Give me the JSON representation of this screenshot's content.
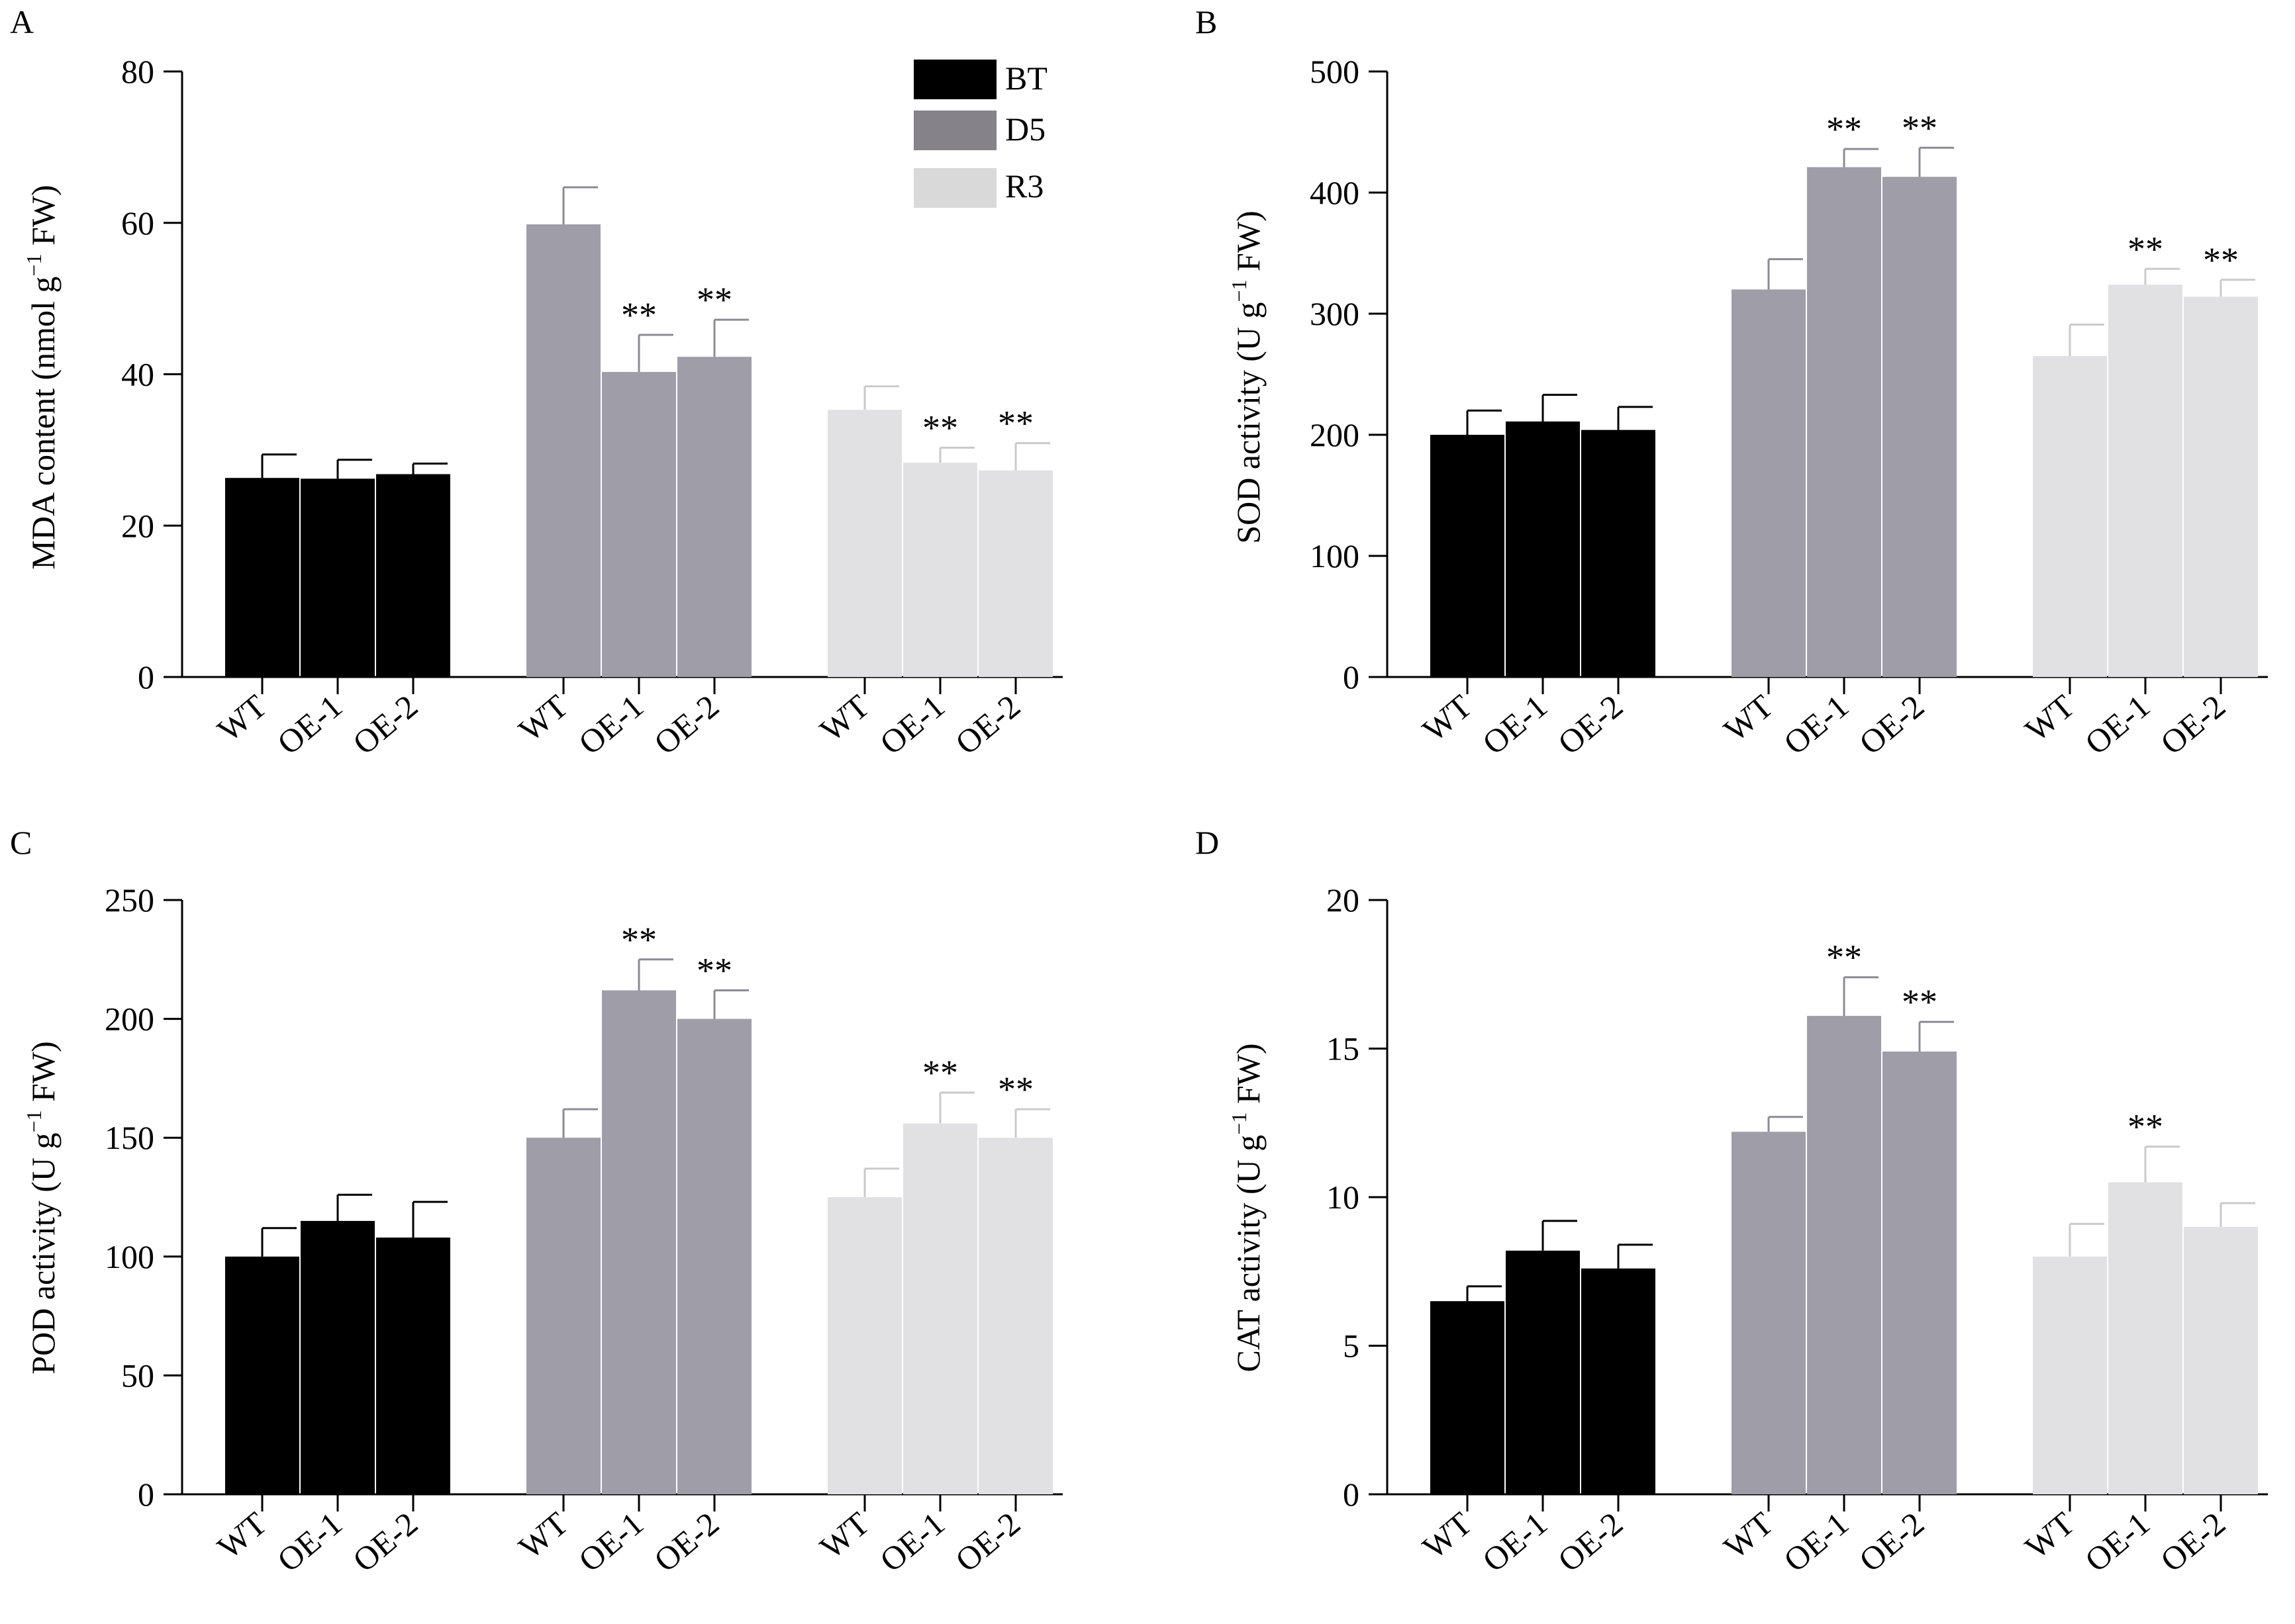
{
  "colors": {
    "BT": "#000000",
    "D5": "#9e9da8",
    "R3": "#e1e1e3",
    "legend_D5": "#858389",
    "legend_R3": "#d9d9d9",
    "error_BT": "#000000",
    "error_D5": "#8c8b94",
    "error_R3": "#cacacd",
    "asterisk_R3": "#3b3b3b"
  },
  "legend": {
    "entries": [
      "BT",
      "D5",
      "R3"
    ],
    "placement": "top-right of panel A"
  },
  "chart_data": [
    {
      "panel": "A",
      "type": "bar",
      "ylabel": "MDA content (nmol g⁻¹ FW)",
      "ylim": [
        0,
        80
      ],
      "yticks": [
        "0",
        "20",
        "40",
        "60",
        "80"
      ],
      "categories": [
        "WT",
        "OE-1",
        "OE-2"
      ],
      "series": [
        {
          "name": "BT",
          "values": [
            26.3,
            26.2,
            26.8
          ],
          "errors": [
            3.1,
            2.5,
            1.4
          ],
          "marks": [
            "",
            "",
            ""
          ]
        },
        {
          "name": "D5",
          "values": [
            59.8,
            40.3,
            42.3
          ],
          "errors": [
            4.9,
            4.9,
            4.9
          ],
          "marks": [
            "",
            "**",
            "**"
          ]
        },
        {
          "name": "R3",
          "values": [
            35.3,
            28.3,
            27.3
          ],
          "errors": [
            3.1,
            2.0,
            3.6
          ],
          "marks": [
            "",
            "**",
            "**"
          ]
        }
      ]
    },
    {
      "panel": "B",
      "type": "bar",
      "ylabel": "SOD activity (U g⁻¹ FW)",
      "ylim": [
        0,
        500
      ],
      "yticks": [
        "0",
        "100",
        "200",
        "300",
        "400",
        "500"
      ],
      "categories": [
        "WT",
        "OE-1",
        "OE-2"
      ],
      "series": [
        {
          "name": "BT",
          "values": [
            200,
            211,
            204
          ],
          "errors": [
            20,
            22,
            19
          ],
          "marks": [
            "",
            "",
            ""
          ]
        },
        {
          "name": "D5",
          "values": [
            320,
            421,
            413
          ],
          "errors": [
            25,
            15,
            24
          ],
          "marks": [
            "",
            "**",
            "**"
          ]
        },
        {
          "name": "R3",
          "values": [
            265,
            324,
            314
          ],
          "errors": [
            26,
            13,
            14
          ],
          "marks": [
            "",
            "**",
            "**"
          ]
        }
      ]
    },
    {
      "panel": "C",
      "type": "bar",
      "ylabel": "POD activity (U g⁻¹ FW)",
      "ylim": [
        0,
        250
      ],
      "yticks": [
        "0",
        "50",
        "100",
        "150",
        "200",
        "250"
      ],
      "categories": [
        "WT",
        "OE-1",
        "OE-2"
      ],
      "series": [
        {
          "name": "BT",
          "values": [
            100,
            115,
            108
          ],
          "errors": [
            12,
            11,
            15
          ],
          "marks": [
            "",
            "",
            ""
          ]
        },
        {
          "name": "D5",
          "values": [
            150,
            212,
            200
          ],
          "errors": [
            12,
            13,
            12
          ],
          "marks": [
            "",
            "**",
            "**"
          ]
        },
        {
          "name": "R3",
          "values": [
            125,
            156,
            150
          ],
          "errors": [
            12,
            13,
            12
          ],
          "marks": [
            "",
            "**",
            "**"
          ]
        }
      ]
    },
    {
      "panel": "D",
      "type": "bar",
      "ylabel": "CAT activity (U g⁻¹ FW)",
      "ylim": [
        0,
        20
      ],
      "yticks": [
        "0",
        "5",
        "10",
        "15",
        "20"
      ],
      "categories": [
        "WT",
        "OE-1",
        "OE-2"
      ],
      "series": [
        {
          "name": "BT",
          "values": [
            6.5,
            8.2,
            7.6
          ],
          "errors": [
            0.5,
            1.0,
            0.8
          ],
          "marks": [
            "",
            "",
            ""
          ]
        },
        {
          "name": "D5",
          "values": [
            12.2,
            16.1,
            14.9
          ],
          "errors": [
            0.5,
            1.3,
            1.0
          ],
          "marks": [
            "",
            "**",
            "**"
          ]
        },
        {
          "name": "R3",
          "values": [
            8.0,
            10.5,
            9.0
          ],
          "errors": [
            1.1,
            1.2,
            0.8
          ],
          "marks": [
            "",
            "**",
            ""
          ]
        }
      ]
    }
  ]
}
